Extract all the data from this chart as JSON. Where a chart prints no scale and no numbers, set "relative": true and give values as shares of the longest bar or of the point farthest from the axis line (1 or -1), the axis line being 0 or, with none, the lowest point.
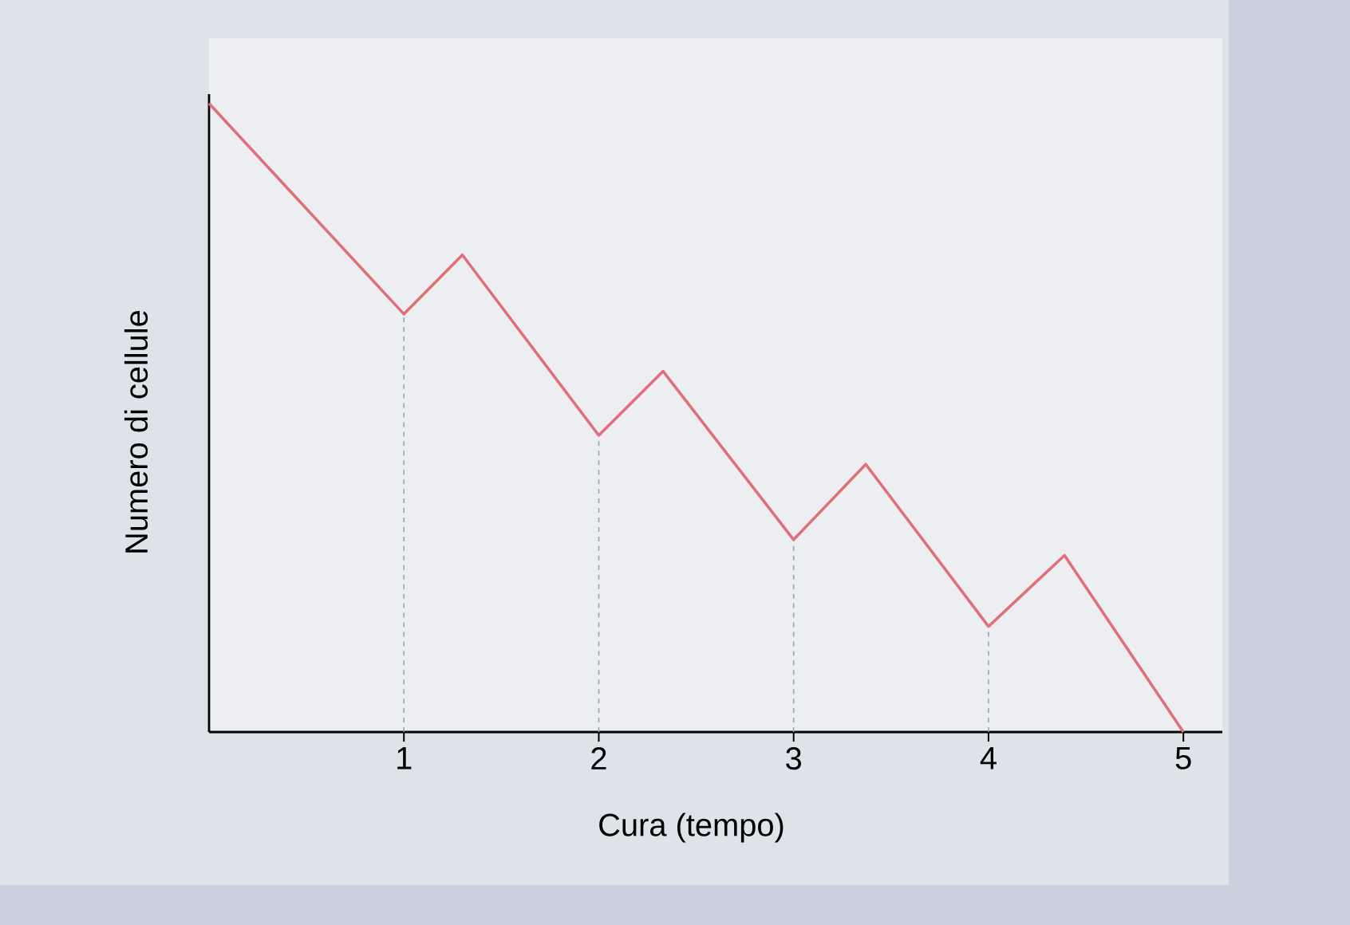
{
  "chart_data": {
    "type": "line",
    "relative": true,
    "xlabel": "Cura (tempo)",
    "ylabel": "Numero di cellule",
    "xlim": [
      0,
      5.2
    ],
    "xticks": [
      1,
      2,
      3,
      4,
      5
    ],
    "series": [
      {
        "color": "#e06f7c",
        "x": [
          0,
          1,
          1.3,
          2,
          2.33,
          3,
          3.37,
          4,
          4.39,
          5
        ],
        "values": [
          1,
          0.665,
          0.759,
          0.472,
          0.574,
          0.306,
          0.426,
          0.168,
          0.281,
          0
        ]
      }
    ],
    "ref_lines": [
      {
        "axis": "x",
        "value": 1,
        "color": "#9aa3b0",
        "line_style": "dashed"
      },
      {
        "axis": "x",
        "value": 2,
        "color": "#9aa3b0",
        "line_style": "dashed"
      },
      {
        "axis": "x",
        "value": 3,
        "color": "#9aa3b0",
        "line_style": "dashed"
      },
      {
        "axis": "x",
        "value": 4,
        "color": "#9aa3b0",
        "line_style": "dashed"
      }
    ],
    "grid": false,
    "marker": "none",
    "line_style": "solid"
  }
}
